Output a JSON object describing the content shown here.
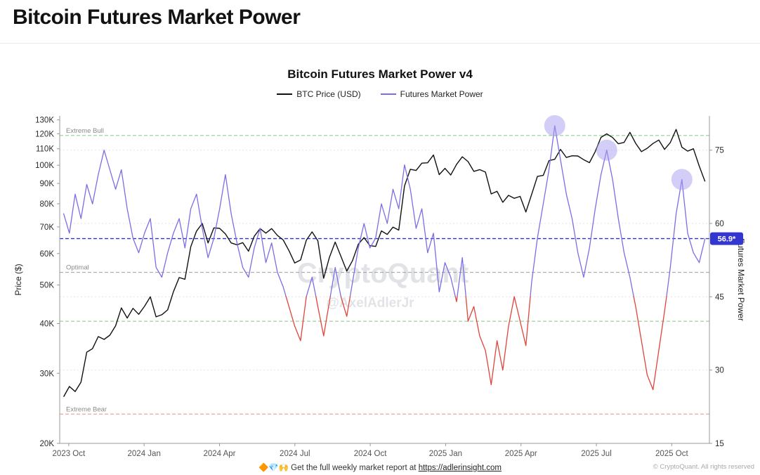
{
  "page": {
    "title": "Bitcoin Futures Market Power"
  },
  "chart": {
    "title": "Bitcoin Futures Market Power v4",
    "legend": [
      {
        "label": "BTC Price (USD)",
        "color": "#111111"
      },
      {
        "label": "Futures Market Power",
        "color": "#7b6ee6"
      }
    ],
    "watermark_line1": "CryptoQuant",
    "watermark_line2": "@AxelAdlerJr",
    "footer_prefix": "🔶💎🙌 Get the full weekly market report at",
    "footer_link": "https://adlerinsight.com",
    "copyright": "© CryptoQuant. All rights reserved"
  },
  "chart_data": {
    "type": "line",
    "title": "Bitcoin Futures Market Power v4",
    "x_axis": {
      "range": [
        2023.72,
        2025.875
      ],
      "ticks": [
        {
          "t": 2023.75,
          "label": "2023 Oct"
        },
        {
          "t": 2024.0,
          "label": "2024 Jan"
        },
        {
          "t": 2024.25,
          "label": "2024 Apr"
        },
        {
          "t": 2024.5,
          "label": "2024 Jul"
        },
        {
          "t": 2024.75,
          "label": "2024 Oct"
        },
        {
          "t": 2025.0,
          "label": "2025 Jan"
        },
        {
          "t": 2025.25,
          "label": "2025 Apr"
        },
        {
          "t": 2025.5,
          "label": "2025 Jul"
        },
        {
          "t": 2025.75,
          "label": "2025 Oct"
        }
      ]
    },
    "left_axis": {
      "label": "Price ($)",
      "scale": "log",
      "range_thousands": [
        20,
        133
      ],
      "ticks": [
        {
          "v": 20,
          "label": "20K"
        },
        {
          "v": 30,
          "label": "30K"
        },
        {
          "v": 40,
          "label": "40K"
        },
        {
          "v": 50,
          "label": "50K"
        },
        {
          "v": 60,
          "label": "60K"
        },
        {
          "v": 70,
          "label": "70K"
        },
        {
          "v": 80,
          "label": "80K"
        },
        {
          "v": 90,
          "label": "90K"
        },
        {
          "v": 100,
          "label": "100K"
        },
        {
          "v": 110,
          "label": "110K"
        },
        {
          "v": 120,
          "label": "120K"
        },
        {
          "v": 130,
          "label": "130K"
        }
      ]
    },
    "right_axis": {
      "label": "Futures Market Power",
      "scale": "linear",
      "range": [
        15,
        82
      ],
      "ticks": [
        15,
        30,
        45,
        60,
        75
      ]
    },
    "x_start": 2023.733,
    "x_step": 0.019165,
    "series": [
      {
        "name": "BTC Price (USD)",
        "axis": "left",
        "color": "#111111",
        "unit": "USD thousands",
        "values": [
          26.2,
          27.8,
          27.0,
          28.5,
          33.9,
          34.6,
          37.1,
          36.5,
          37.4,
          39.5,
          43.8,
          41.3,
          43.7,
          42.2,
          44.2,
          46.7,
          41.6,
          42.1,
          43.3,
          48.1,
          52.2,
          51.7,
          62.4,
          68.3,
          71.4,
          63.8,
          69.6,
          69.4,
          67.2,
          63.8,
          63.1,
          63.9,
          60.8,
          66.3,
          69.3,
          67.5,
          69.3,
          66.6,
          64.9,
          61.0,
          56.8,
          57.8,
          64.8,
          68.0,
          64.6,
          52.0,
          58.7,
          64.1,
          59.0,
          54.2,
          57.6,
          63.3,
          65.8,
          62.8,
          62.5,
          68.4,
          67.0,
          69.9,
          68.7,
          88.7,
          97.7,
          97.0,
          101.2,
          101.4,
          106.1,
          94.7,
          98.2,
          94.5,
          100.5,
          105.0,
          102.1,
          96.5,
          97.5,
          96.1,
          84.7,
          86.0,
          80.7,
          84.0,
          82.6,
          83.5,
          76.3,
          84.5,
          93.7,
          94.3,
          102.7,
          103.5,
          109.6,
          104.6,
          105.6,
          105.5,
          103.3,
          101.5,
          108.2,
          117.5,
          119.9,
          117.4,
          113.2,
          114.1,
          121.0,
          113.5,
          108.2,
          110.3,
          113.4,
          115.7,
          109.6,
          114.0,
          123.0,
          111.0,
          108.5,
          110.0,
          99.5,
          91.0
        ]
      },
      {
        "name": "Futures Market Power",
        "axis": "right",
        "color": "#7b6ee6",
        "low_color": "#e0443a",
        "low_threshold": 45,
        "values": [
          62,
          58,
          66,
          61,
          68,
          64,
          70,
          75,
          71,
          67,
          71,
          63,
          57,
          54,
          58,
          61,
          51,
          49,
          54,
          58,
          61,
          55,
          63,
          66,
          59,
          53,
          57,
          63,
          70,
          62,
          56,
          51,
          49,
          55,
          59,
          52,
          56,
          50,
          47,
          43,
          39,
          36,
          45,
          49,
          43,
          37,
          44,
          51,
          45,
          41,
          48,
          55,
          60,
          55,
          57,
          64,
          60,
          67,
          63,
          72,
          67,
          59,
          63,
          54,
          58,
          46,
          52,
          49,
          44,
          53,
          40,
          43,
          37,
          34,
          27,
          36,
          30,
          39,
          45,
          40,
          35,
          48,
          57,
          64,
          71,
          80,
          73,
          66,
          61,
          54,
          49,
          55,
          63,
          70,
          75,
          69,
          61,
          54,
          49,
          43,
          36,
          29,
          26,
          34,
          42,
          51,
          62,
          69,
          58,
          54,
          52,
          56.9
        ]
      }
    ],
    "levels": [
      {
        "name": "extreme-bull",
        "label": "Extreme Bull",
        "value": 78,
        "axis": "right",
        "color": "#80c883"
      },
      {
        "name": "current",
        "label": "",
        "value": 56.9,
        "axis": "right",
        "color": "#3437cf",
        "badge": "56.9*"
      },
      {
        "name": "optimal",
        "label": "Optimal",
        "value": 50,
        "axis": "right",
        "color": "#9e9e9e"
      },
      {
        "name": "lower-band",
        "label": "",
        "value": 40,
        "axis": "right",
        "color": "#80c883"
      },
      {
        "name": "extreme-bear",
        "label": "Extreme Bear",
        "value": 21,
        "axis": "right",
        "color": "#ec8e8e"
      }
    ],
    "current_value_label": "56.9*",
    "highlights": [
      {
        "index": 85
      },
      {
        "index": 94
      },
      {
        "index": 107
      }
    ]
  }
}
